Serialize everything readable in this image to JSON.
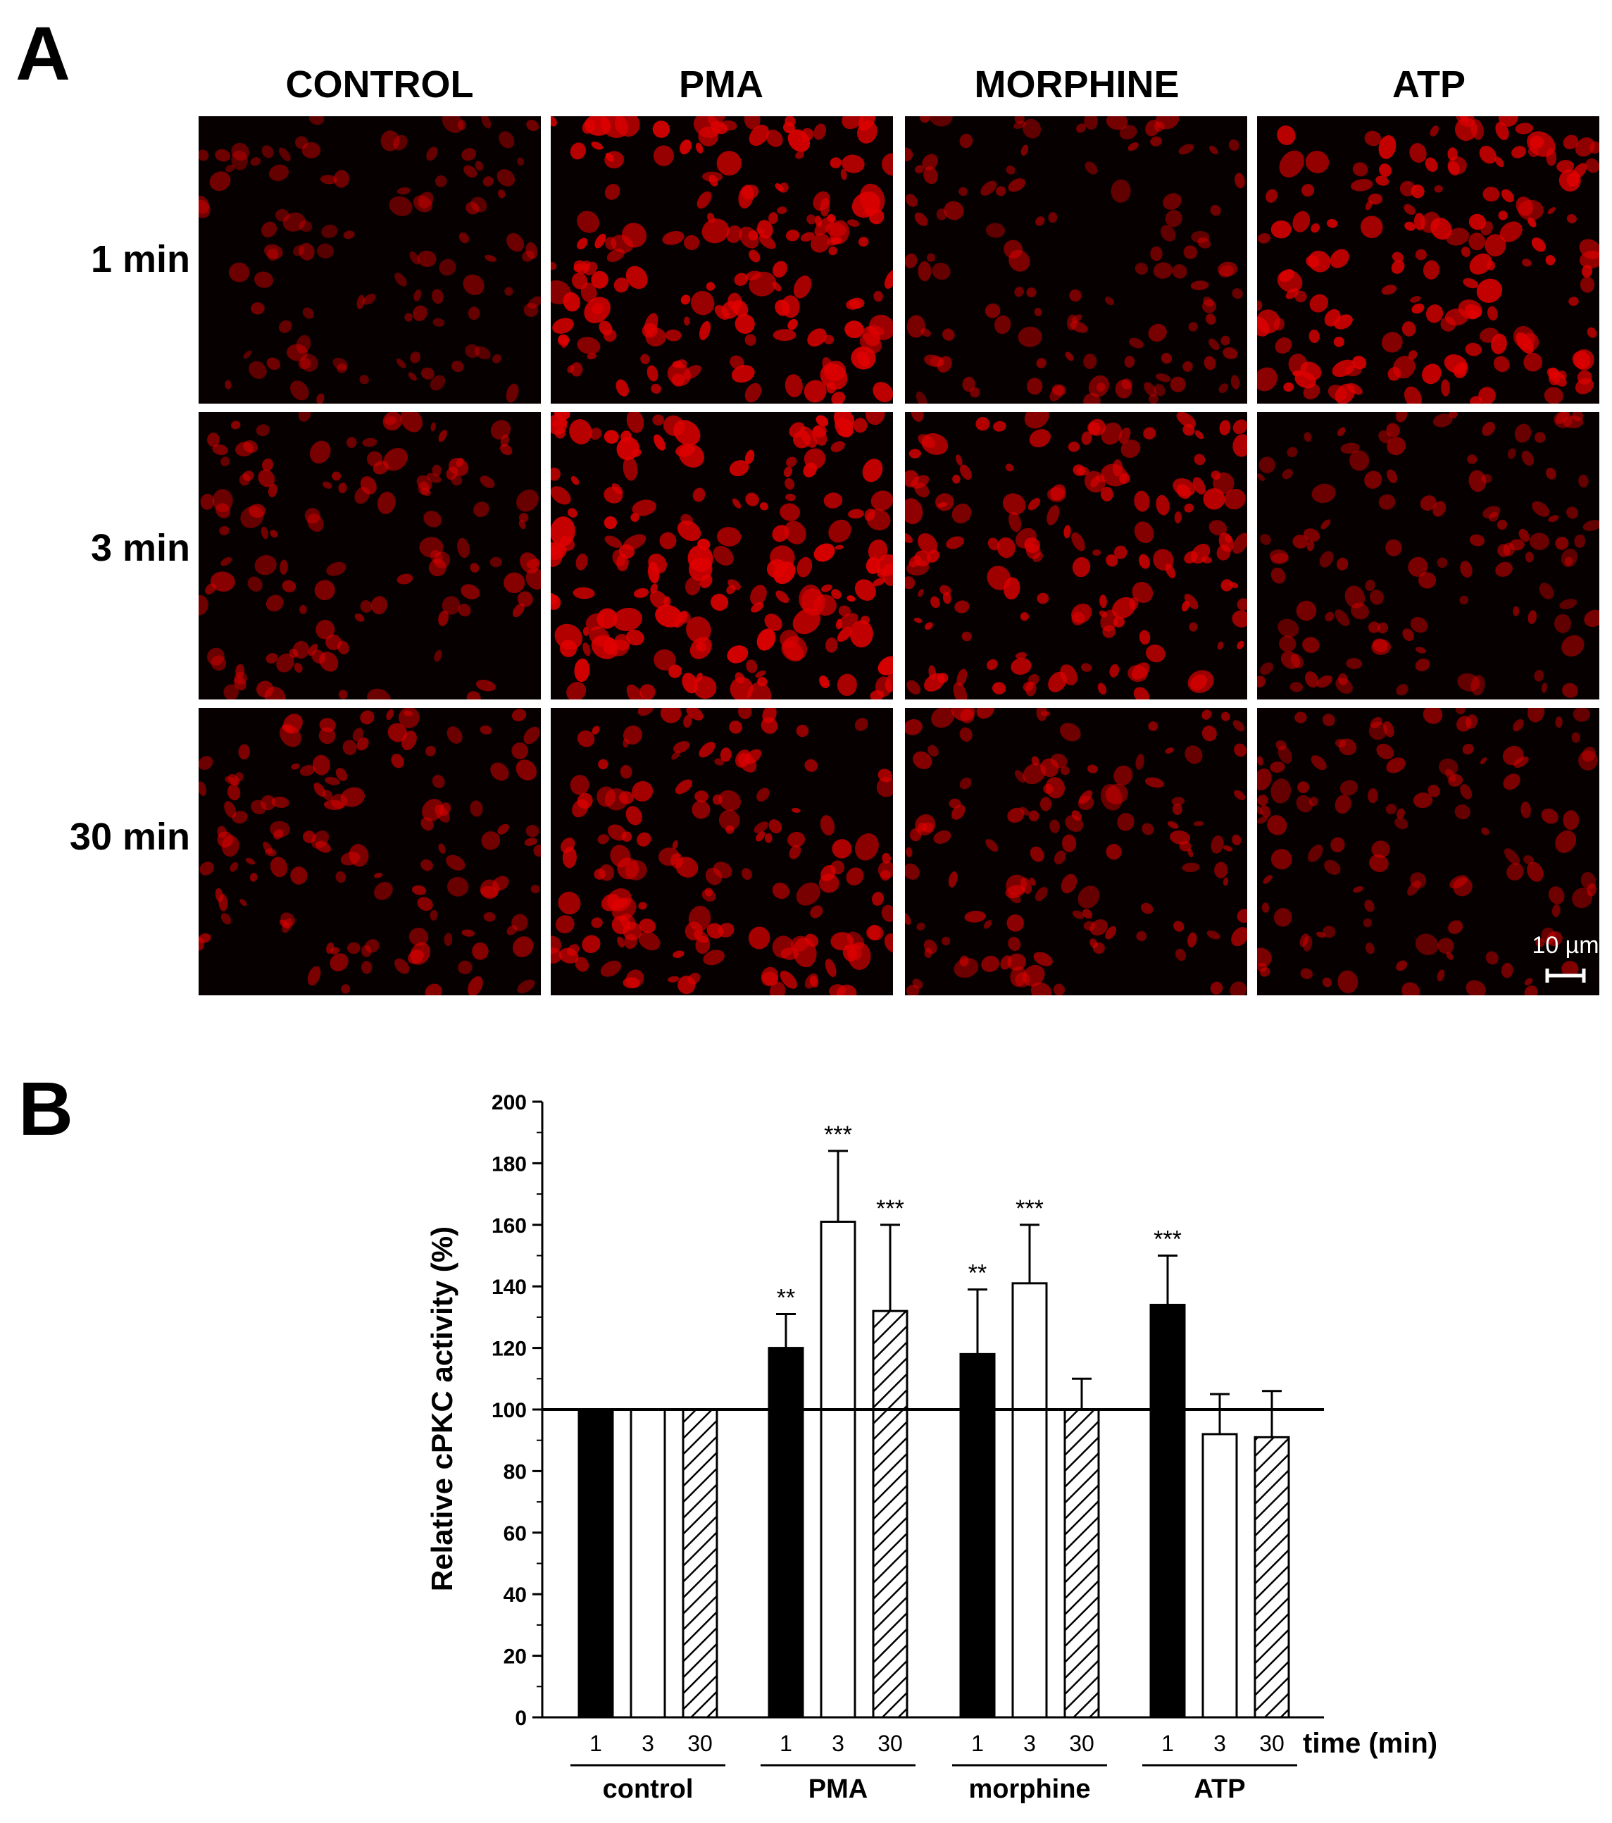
{
  "panels": {
    "a_label": "A",
    "b_label": "B"
  },
  "panel_a": {
    "column_headers": [
      "CONTROL",
      "PMA",
      "MORPHINE",
      "ATP"
    ],
    "row_headers": [
      "1 min",
      "3 min",
      "30 min"
    ],
    "scale_bar": "10 µm",
    "cell_color": "#e00000",
    "background_color": "#060000"
  },
  "chart_data": {
    "type": "bar",
    "ylabel": "Relative cPKC activity (%)",
    "xlabel": "time (min)",
    "ylim": [
      0,
      200
    ],
    "yticks": [
      0,
      20,
      40,
      60,
      80,
      100,
      120,
      140,
      160,
      180,
      200
    ],
    "reference_line": 100,
    "groups": [
      "control",
      "PMA",
      "morphine",
      "ATP"
    ],
    "time_labels": [
      "1",
      "3",
      "30"
    ],
    "series": [
      {
        "name": "1",
        "fill": "black",
        "values": [
          100,
          120,
          118,
          134
        ],
        "errors": [
          0,
          11,
          21,
          16
        ],
        "significance": [
          "",
          "**",
          "**",
          "***"
        ]
      },
      {
        "name": "3",
        "fill": "white",
        "values": [
          100,
          161,
          141,
          92
        ],
        "errors": [
          0,
          23,
          19,
          13
        ],
        "significance": [
          "",
          "***",
          "***",
          ""
        ]
      },
      {
        "name": "30",
        "fill": "hatched",
        "values": [
          100,
          132,
          100,
          91
        ],
        "errors": [
          0,
          28,
          10,
          15
        ],
        "significance": [
          "",
          "***",
          "",
          ""
        ]
      }
    ]
  }
}
